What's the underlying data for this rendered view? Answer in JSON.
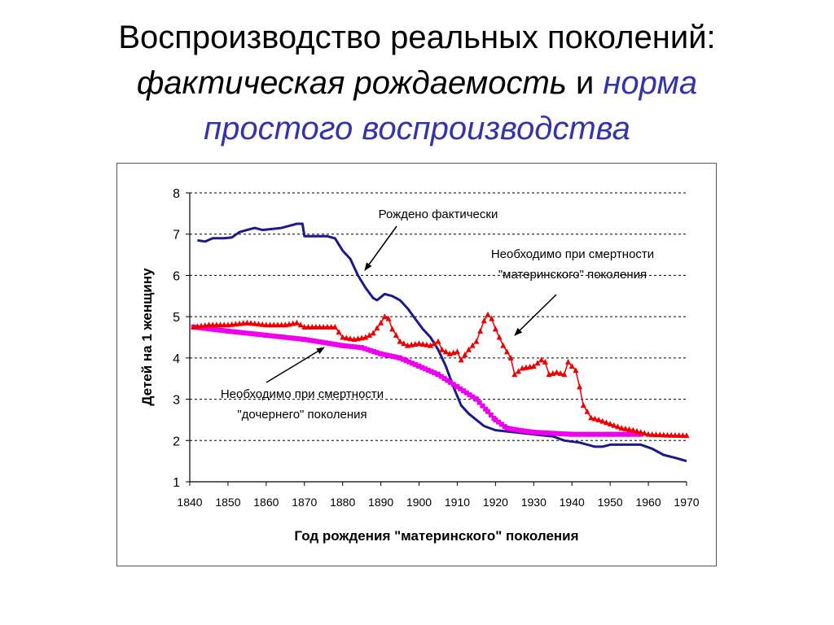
{
  "title": {
    "line1": "Воспроизводство реальных поколений:",
    "line2_part1": "фактическая рождаемость",
    "line2_part2": " и ",
    "line2_part3": "норма",
    "line3": "простого воспроизводства"
  },
  "colors": {
    "actual": "#1a1a8c",
    "maternal": "#ee0000",
    "daughter": "#ee00ee",
    "title_blue": "#3333aa"
  },
  "chart_data": {
    "type": "line",
    "xlabel": "Год рождения \"материнского\" поколения",
    "ylabel": "Детей на 1 женщину",
    "xlim": [
      1840,
      1970
    ],
    "ylim": [
      1,
      8
    ],
    "xticks": [
      "1840",
      "1850",
      "1860",
      "1870",
      "1880",
      "1890",
      "1900",
      "1910",
      "1920",
      "1930",
      "1940",
      "1950",
      "1960",
      "1970"
    ],
    "yticks": [
      "1",
      "2",
      "3",
      "4",
      "5",
      "6",
      "7",
      "8"
    ],
    "grid": "horizontal dashed",
    "annotations": [
      {
        "id": "actual",
        "text": "Рождено фактически"
      },
      {
        "id": "maternal",
        "lines": [
          "Необходимо при смертности",
          "\"материнского\" поколения"
        ]
      },
      {
        "id": "daughter",
        "lines": [
          "Необходимо при смертности",
          "\"дочернего\" поколения"
        ]
      }
    ],
    "series": [
      {
        "name": "Рождено фактически",
        "color": "#1a1a8c",
        "points": [
          [
            1842,
            6.85
          ],
          [
            1844,
            6.82
          ],
          [
            1846,
            6.9
          ],
          [
            1849,
            6.9
          ],
          [
            1851,
            6.92
          ],
          [
            1853,
            7.05
          ],
          [
            1855,
            7.1
          ],
          [
            1857,
            7.15
          ],
          [
            1859,
            7.1
          ],
          [
            1861,
            7.12
          ],
          [
            1864,
            7.15
          ],
          [
            1866,
            7.2
          ],
          [
            1868,
            7.25
          ],
          [
            1869.5,
            7.25
          ],
          [
            1870,
            6.95
          ],
          [
            1872,
            6.95
          ],
          [
            1876,
            6.95
          ],
          [
            1878,
            6.9
          ],
          [
            1880,
            6.6
          ],
          [
            1882,
            6.4
          ],
          [
            1884,
            6.0
          ],
          [
            1886,
            5.7
          ],
          [
            1888,
            5.45
          ],
          [
            1889,
            5.4
          ],
          [
            1891,
            5.55
          ],
          [
            1893,
            5.5
          ],
          [
            1895,
            5.4
          ],
          [
            1897,
            5.2
          ],
          [
            1899,
            4.95
          ],
          [
            1901,
            4.7
          ],
          [
            1903,
            4.5
          ],
          [
            1905,
            4.2
          ],
          [
            1907,
            3.8
          ],
          [
            1909,
            3.3
          ],
          [
            1911,
            2.85
          ],
          [
            1913,
            2.65
          ],
          [
            1915,
            2.5
          ],
          [
            1917,
            2.35
          ],
          [
            1920,
            2.25
          ],
          [
            1925,
            2.2
          ],
          [
            1930,
            2.15
          ],
          [
            1935,
            2.1
          ],
          [
            1938,
            2.0
          ],
          [
            1942,
            1.95
          ],
          [
            1946,
            1.85
          ],
          [
            1948,
            1.85
          ],
          [
            1950,
            1.9
          ],
          [
            1955,
            1.9
          ],
          [
            1958,
            1.9
          ],
          [
            1961,
            1.8
          ],
          [
            1964,
            1.65
          ],
          [
            1967,
            1.58
          ],
          [
            1970,
            1.5
          ]
        ]
      },
      {
        "name": "Необходимо при смертности \"материнского\" поколения",
        "color": "#ee0000",
        "points": [
          [
            1841,
            4.75
          ],
          [
            1845,
            4.8
          ],
          [
            1850,
            4.8
          ],
          [
            1855,
            4.85
          ],
          [
            1860,
            4.8
          ],
          [
            1865,
            4.8
          ],
          [
            1868,
            4.85
          ],
          [
            1870,
            4.75
          ],
          [
            1875,
            4.75
          ],
          [
            1878,
            4.75
          ],
          [
            1880,
            4.5
          ],
          [
            1883,
            4.45
          ],
          [
            1886,
            4.5
          ],
          [
            1888,
            4.6
          ],
          [
            1890,
            4.85
          ],
          [
            1891,
            5.0
          ],
          [
            1892,
            4.95
          ],
          [
            1893,
            4.7
          ],
          [
            1895,
            4.4
          ],
          [
            1897,
            4.3
          ],
          [
            1900,
            4.35
          ],
          [
            1903,
            4.3
          ],
          [
            1905,
            4.4
          ],
          [
            1906,
            4.2
          ],
          [
            1908,
            4.1
          ],
          [
            1910,
            4.15
          ],
          [
            1911,
            3.95
          ],
          [
            1913,
            4.2
          ],
          [
            1915,
            4.4
          ],
          [
            1917,
            4.9
          ],
          [
            1918,
            5.05
          ],
          [
            1919,
            4.95
          ],
          [
            1920,
            4.7
          ],
          [
            1922,
            4.3
          ],
          [
            1924,
            4.0
          ],
          [
            1925,
            3.6
          ],
          [
            1927,
            3.75
          ],
          [
            1930,
            3.8
          ],
          [
            1932,
            3.95
          ],
          [
            1933,
            3.9
          ],
          [
            1934,
            3.6
          ],
          [
            1936,
            3.65
          ],
          [
            1938,
            3.6
          ],
          [
            1939,
            3.9
          ],
          [
            1941,
            3.7
          ],
          [
            1942,
            3.3
          ],
          [
            1943,
            2.85
          ],
          [
            1945,
            2.55
          ],
          [
            1947,
            2.5
          ],
          [
            1950,
            2.4
          ],
          [
            1953,
            2.3
          ],
          [
            1956,
            2.25
          ],
          [
            1960,
            2.15
          ],
          [
            1965,
            2.13
          ],
          [
            1970,
            2.12
          ]
        ]
      },
      {
        "name": "Необходимо при смертности \"дочернего\" поколения",
        "color": "#ee00ee",
        "points": [
          [
            1841,
            4.75
          ],
          [
            1850,
            4.65
          ],
          [
            1860,
            4.55
          ],
          [
            1870,
            4.45
          ],
          [
            1880,
            4.3
          ],
          [
            1885,
            4.25
          ],
          [
            1890,
            4.1
          ],
          [
            1895,
            4.0
          ],
          [
            1900,
            3.8
          ],
          [
            1905,
            3.6
          ],
          [
            1910,
            3.3
          ],
          [
            1915,
            3.0
          ],
          [
            1918,
            2.7
          ],
          [
            1920,
            2.5
          ],
          [
            1923,
            2.3
          ],
          [
            1926,
            2.25
          ],
          [
            1930,
            2.2
          ],
          [
            1940,
            2.15
          ],
          [
            1950,
            2.15
          ],
          [
            1955,
            2.15
          ],
          [
            1958,
            2.15
          ]
        ]
      }
    ]
  }
}
